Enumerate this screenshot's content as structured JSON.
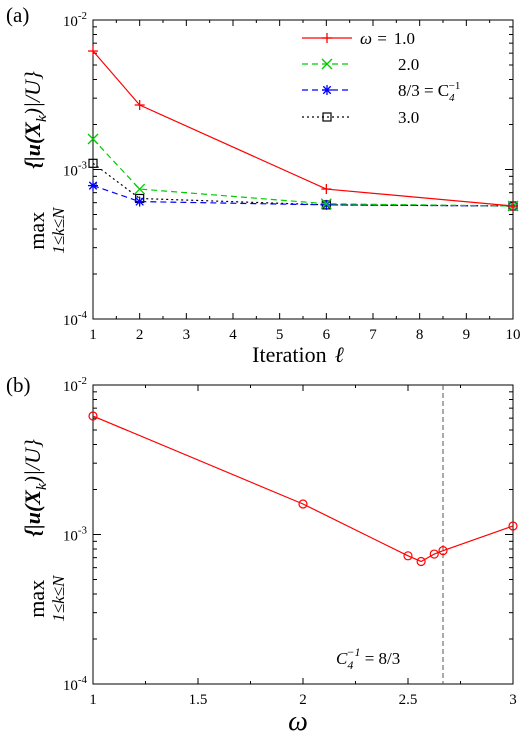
{
  "chart_data": [
    {
      "panel_label": "(a)",
      "type": "line",
      "xlabel": "Iteration",
      "xlabel_symbol": "ℓ",
      "ylabel_parts": {
        "max": "max",
        "sub": "1≤k≤N",
        "expr": "{|u(X",
        "k": "k",
        "tail": ")|/U}"
      },
      "xlim": [
        1,
        10
      ],
      "ylim": [
        0.0001,
        0.01
      ],
      "yscale": "log",
      "x_ticks": [
        "1",
        "2",
        "3",
        "4",
        "5",
        "6",
        "7",
        "8",
        "9",
        "10"
      ],
      "y_ticks": [
        {
          "value": 0.01,
          "base": "10",
          "exp": "-2"
        },
        {
          "value": 0.001,
          "base": "10",
          "exp": "-3"
        },
        {
          "value": 0.0001,
          "base": "10",
          "exp": "-4"
        }
      ],
      "legend": {
        "placement": "top-right",
        "title_symbol": "ω =",
        "entries": [
          {
            "label": "1.0"
          },
          {
            "label": "2.0"
          },
          {
            "label": "8/3 = C",
            "sub": "4",
            "sup": "−1"
          },
          {
            "label": "3.0"
          }
        ]
      },
      "series": [
        {
          "x": [
            1,
            2,
            6,
            10
          ],
          "values": [
            0.0062,
            0.0027,
            0.00074,
            0.00057
          ],
          "color": "#ff0000",
          "marker": "plus",
          "dash": "solid"
        },
        {
          "x": [
            1,
            2,
            6,
            10
          ],
          "values": [
            0.0016,
            0.00074,
            0.00059,
            0.00057
          ],
          "color": "#00cc00",
          "marker": "cross",
          "dash": "dashed"
        },
        {
          "x": [
            1,
            2,
            6,
            10
          ],
          "values": [
            0.00078,
            0.00061,
            0.00058,
            0.00057
          ],
          "color": "#0000ff",
          "marker": "star",
          "dash": "dashed"
        },
        {
          "x": [
            1,
            2,
            6,
            10
          ],
          "values": [
            0.0011,
            0.00064,
            0.00058,
            0.00057
          ],
          "color": "#000000",
          "marker": "square",
          "dash": "dotted"
        }
      ]
    },
    {
      "panel_label": "(b)",
      "type": "line",
      "xlabel_symbol": "ω",
      "ylabel_parts": {
        "max": "max",
        "sub": "1≤k≤N",
        "expr": "{|u(X",
        "k": "k",
        "tail": ")|/U}"
      },
      "xlim": [
        1,
        3
      ],
      "ylim": [
        0.0001,
        0.01
      ],
      "yscale": "log",
      "x_ticks": [
        "1",
        "1.5",
        "2",
        "2.5",
        "3"
      ],
      "y_ticks": [
        {
          "value": 0.01,
          "base": "10",
          "exp": "-2"
        },
        {
          "value": 0.001,
          "base": "10",
          "exp": "-3"
        },
        {
          "value": 0.0001,
          "base": "10",
          "exp": "-4"
        }
      ],
      "vline": {
        "x": 2.6667,
        "color": "#555555",
        "dash": "dashed"
      },
      "annotation": {
        "base": "C",
        "sub": "4",
        "sup": "−1",
        "tail": " = 8/3"
      },
      "series": [
        {
          "x": [
            1.0,
            2.0,
            2.5,
            2.5625,
            2.625,
            2.6667,
            3.0
          ],
          "values": [
            0.0062,
            0.0016,
            0.00072,
            0.00066,
            0.00074,
            0.00078,
            0.00114
          ],
          "color": "#ff0000",
          "marker": "circle",
          "dash": "solid"
        }
      ]
    }
  ]
}
